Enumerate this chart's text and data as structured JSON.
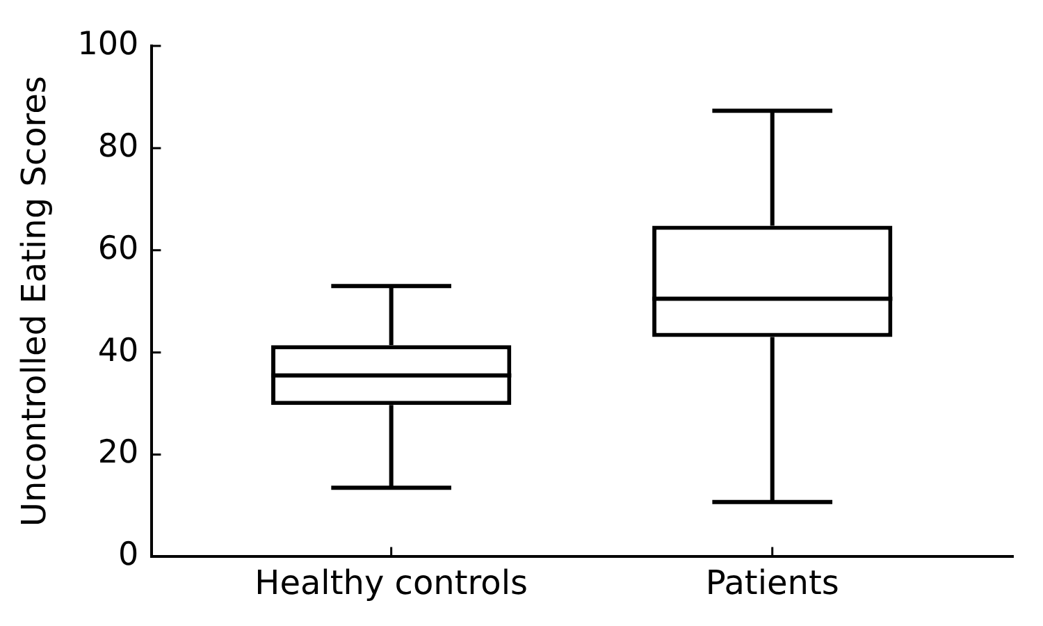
{
  "chart_data": {
    "type": "box",
    "ylabel": "Uncontrolled Eating Scores",
    "categories": [
      "Healthy controls",
      "Patients"
    ],
    "boxes": [
      {
        "low": 13.5,
        "q1": 29.7,
        "median": 35.5,
        "q3": 41.4,
        "high": 53
      },
      {
        "low": 10.7,
        "q1": 43,
        "median": 50.5,
        "q3": 64.8,
        "high": 87.3
      }
    ],
    "color": "#000000",
    "ylim": [
      0,
      100
    ],
    "yticks": [
      0,
      20,
      40,
      60,
      80,
      100
    ]
  }
}
